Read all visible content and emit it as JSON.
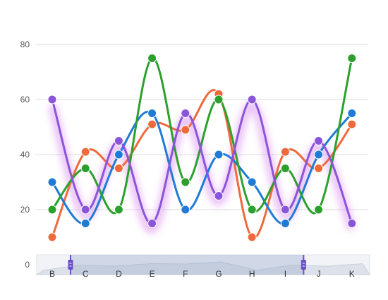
{
  "chart_data": {
    "type": "line",
    "smooth": true,
    "categories": [
      "B",
      "C",
      "D",
      "E",
      "F",
      "G",
      "H",
      "I",
      "J",
      "K"
    ],
    "ylim": [
      0,
      80
    ],
    "yticks": [
      0,
      20,
      40,
      60,
      80
    ],
    "grid": true,
    "legend": "none",
    "series": [
      {
        "color": "#ee6a3c",
        "values": [
          10,
          41,
          35,
          51,
          49,
          62,
          10,
          41,
          35,
          51
        ]
      },
      {
        "color": "#1f7bd6",
        "values": [
          30,
          15,
          40,
          55,
          20,
          40,
          30,
          15,
          40,
          55
        ]
      },
      {
        "color": "#2ca02c",
        "values": [
          20,
          35,
          20,
          75,
          30,
          60,
          20,
          35,
          20,
          75
        ]
      },
      {
        "color": "#8a55d8",
        "glow": true,
        "values": [
          60,
          20,
          45,
          15,
          55,
          25,
          60,
          20,
          45,
          15
        ]
      }
    ],
    "data_zoom": {
      "range_start_category": "B",
      "range_end_category": "I",
      "handle_color": "#6a4fc4",
      "overview_values": [
        10,
        41,
        35,
        51,
        49,
        62,
        10,
        41,
        35,
        51
      ]
    }
  }
}
